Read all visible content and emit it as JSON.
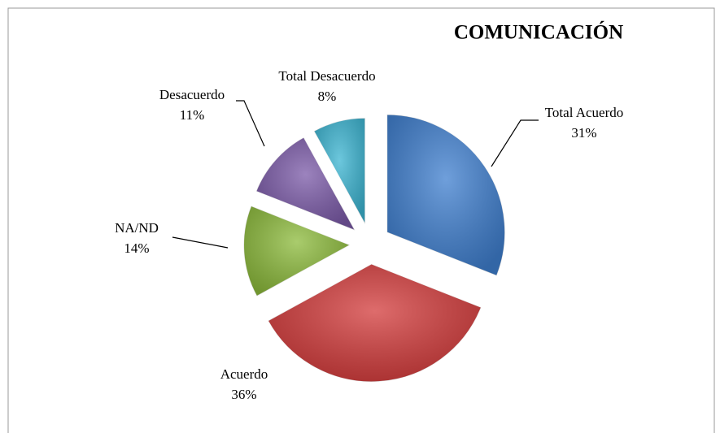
{
  "chart_data": {
    "type": "pie",
    "title": "COMUNICACIÓN",
    "categories": [
      "Total Acuerdo",
      "Acuerdo",
      "NA/ND",
      "Desacuerdo",
      "Total Desacuerdo"
    ],
    "values": [
      31,
      36,
      14,
      11,
      8
    ],
    "value_labels": [
      "31%",
      "36%",
      "14%",
      "11%",
      "8%"
    ],
    "colors": [
      "#3f7fcf",
      "#d33b3b",
      "#8dbb3c",
      "#7b5aa8",
      "#3cb5d2"
    ]
  }
}
